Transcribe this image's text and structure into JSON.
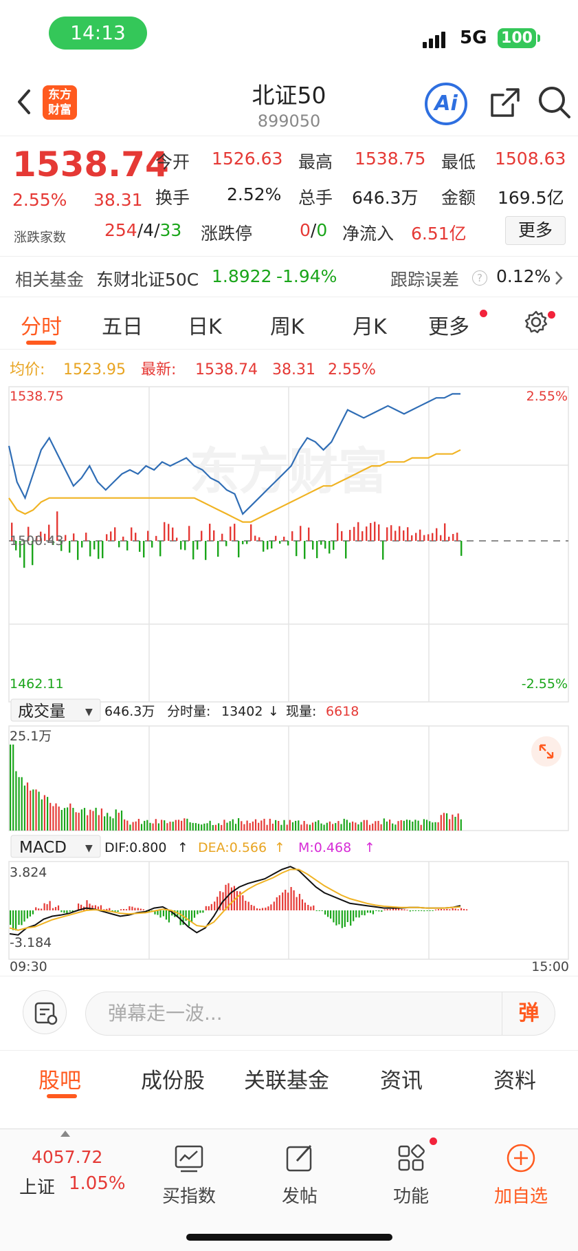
{
  "status_bar": {
    "time": "14:13",
    "network": "5G",
    "battery": "100"
  },
  "header": {
    "logo_text": "东方财富",
    "title": "北证50",
    "code": "899050",
    "ai_label": "Ai"
  },
  "quote": {
    "price": "1538.74",
    "change_pct": "2.55%",
    "change": "38.31",
    "fields": [
      {
        "label": "今开",
        "value": "1526.63",
        "color": "red"
      },
      {
        "label": "最高",
        "value": "1538.75",
        "color": "red"
      },
      {
        "label": "最低",
        "value": "1508.63",
        "color": "red"
      },
      {
        "label": "换手",
        "value": "2.52%",
        "color": "black"
      },
      {
        "label": "总手",
        "value": "646.3万",
        "color": "black"
      },
      {
        "label": "金额",
        "value": "169.5亿",
        "color": "black"
      }
    ],
    "breadth_label": "涨跌家数",
    "breadth_up": "254",
    "breadth_flat": "4",
    "breadth_down": "33",
    "limit_label": "涨跌停",
    "limit_up": "0",
    "limit_down": "0",
    "inflow_label": "净流入",
    "inflow_value": "6.51亿",
    "more_label": "更多"
  },
  "fund": {
    "label": "相关基金",
    "name": "东财北证50C",
    "nav": "1.8922",
    "change": "-1.94%",
    "error_label": "跟踪误差",
    "error_value": "0.12%"
  },
  "tabs": [
    "分时",
    "五日",
    "日K",
    "周K",
    "月K",
    "更多"
  ],
  "active_tab": "分时",
  "chart_info": {
    "avg_label": "均价:",
    "avg_value": "1523.95",
    "latest_label": "最新:",
    "latest_value": "1538.74",
    "latest_change": "38.31",
    "latest_pct": "2.55%",
    "y_top": "1538.75",
    "y_mid": "1500.43",
    "y_bottom": "1462.11",
    "pct_top": "2.55%",
    "pct_bottom": "-2.55%",
    "watermark": "东方财富",
    "volume_select": "成交量",
    "volume_total": "646.3万",
    "minute_vol_label": "分时量:",
    "minute_vol_value": "13402",
    "current_vol_label": "现量:",
    "current_vol_value": "6618",
    "volume_max": "25.1万",
    "macd_select": "MACD",
    "dif": "DIF:0.800",
    "dea": "DEA:0.566",
    "m": "M:0.468",
    "macd_top": "3.824",
    "macd_bottom": "-3.184",
    "time_start": "09:30",
    "time_end": "15:00"
  },
  "chart_data": {
    "type": "line",
    "title": "",
    "x_range": [
      "09:30",
      "15:00"
    ],
    "ylim": [
      1462.11,
      1538.75
    ],
    "reference": 1500.43,
    "series": [
      {
        "name": "最新",
        "values": [
          1525,
          1516,
          1512,
          1518,
          1524,
          1527,
          1523,
          1519,
          1515,
          1517,
          1520,
          1516,
          1514,
          1516,
          1518,
          1519,
          1518,
          1520,
          1519,
          1521,
          1520,
          1521,
          1522,
          1520,
          1519,
          1517,
          1516,
          1514,
          1513,
          1508,
          1510,
          1512,
          1514,
          1516,
          1518,
          1520,
          1524,
          1527,
          1526,
          1524,
          1526,
          1530,
          1534,
          1533,
          1532,
          1533,
          1534,
          1535,
          1534,
          1533,
          1534,
          1535,
          1536,
          1537,
          1537,
          1538,
          1538
        ]
      },
      {
        "name": "均价",
        "values": [
          1512,
          1509,
          1508,
          1509,
          1511,
          1512,
          1512,
          1512,
          1512,
          1512,
          1512,
          1512,
          1512,
          1512,
          1512,
          1512,
          1512,
          1512,
          1512,
          1512,
          1512,
          1512,
          1512,
          1512,
          1511,
          1510,
          1509,
          1508,
          1507,
          1506,
          1506,
          1507,
          1508,
          1509,
          1510,
          1511,
          1512,
          1513,
          1514,
          1515,
          1515,
          1516,
          1517,
          1518,
          1519,
          1520,
          1520,
          1521,
          1521,
          1521,
          1522,
          1522,
          1522,
          1523,
          1523,
          1523,
          1524
        ]
      }
    ]
  },
  "danmu": {
    "placeholder": "弹幕走一波...",
    "send": "弹"
  },
  "sub_tabs": [
    "股吧",
    "成份股",
    "关联基金",
    "资讯",
    "资料"
  ],
  "sub_active": "股吧",
  "bottom_nav": {
    "index_value": "4057.72",
    "index_name": "上证",
    "index_pct": "1.05%",
    "items": [
      "买指数",
      "发帖",
      "功能",
      "加自选"
    ]
  },
  "colors": {
    "accent": "#ff5a1f",
    "up": "#e53935",
    "down": "#1aa51a",
    "price_line": "#2f6db5",
    "avg_line": "#f0b323"
  }
}
